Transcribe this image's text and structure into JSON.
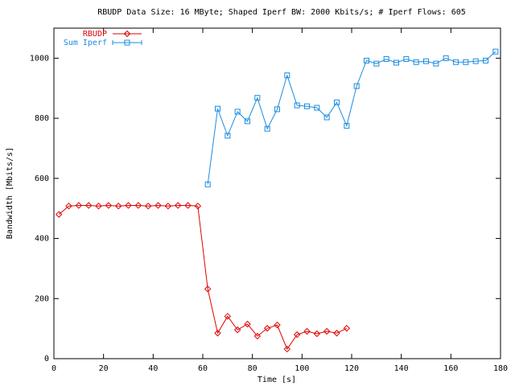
{
  "chart_data": {
    "type": "line",
    "title": "RBUDP Data Size: 16 MByte; Shaped Iperf BW: 2000 Kbits/s; # Iperf Flows: 605",
    "x_label": "Time [s]",
    "y_label": "Bandwidth [Mbits/s]",
    "xlim": [
      0,
      180
    ],
    "xticks": [
      0,
      20,
      40,
      60,
      80,
      100,
      120,
      140,
      160,
      180
    ],
    "ylim": [
      0,
      1100
    ],
    "yticks": [
      0,
      200,
      400,
      600,
      800,
      1000
    ],
    "legend": "top-left",
    "series": [
      {
        "name": "RBUDP",
        "color": "#e00000",
        "marker": "diamond",
        "x": [
          2,
          6,
          10,
          14,
          18,
          22,
          26,
          30,
          34,
          38,
          42,
          46,
          50,
          54,
          58,
          62,
          66,
          70,
          74,
          78,
          82,
          86,
          90,
          94,
          98,
          102,
          106,
          110,
          114,
          118
        ],
        "values": [
          480,
          508,
          510,
          510,
          508,
          510,
          508,
          510,
          510,
          508,
          510,
          508,
          510,
          510,
          508,
          232,
          85,
          141,
          96,
          115,
          75,
          101,
          112,
          32,
          80,
          91,
          83,
          91,
          85,
          101
        ]
      },
      {
        "name": "Sum Iperf",
        "color": "#1a8ce0",
        "marker": "square",
        "x": [
          62,
          66,
          70,
          74,
          78,
          82,
          86,
          90,
          94,
          98,
          102,
          106,
          110,
          114,
          118,
          122,
          126,
          130,
          134,
          138,
          142,
          146,
          150,
          154,
          158,
          162,
          166,
          170,
          174,
          178
        ],
        "values": [
          580,
          832,
          742,
          822,
          790,
          868,
          765,
          830,
          943,
          843,
          840,
          835,
          803,
          853,
          775,
          907,
          992,
          982,
          997,
          985,
          997,
          987,
          990,
          982,
          1000,
          987,
          987,
          990,
          992,
          1022
        ]
      }
    ]
  }
}
